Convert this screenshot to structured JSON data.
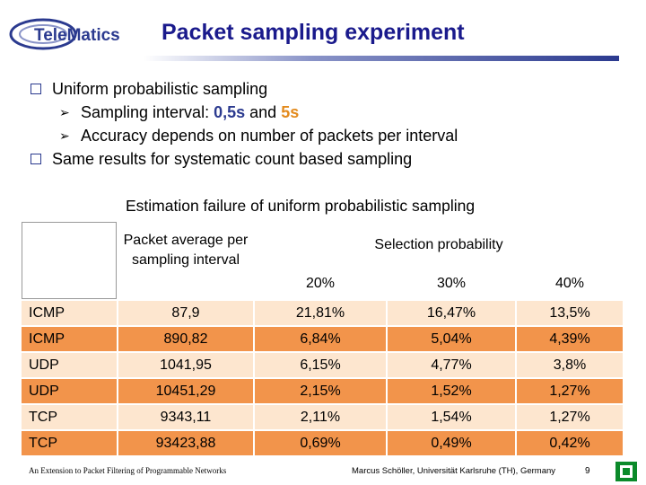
{
  "header": {
    "logo_text": "TeleMatics",
    "title": "Packet sampling experiment"
  },
  "bullets": {
    "item1": "Uniform probabilistic sampling",
    "sub1_prefix": "Sampling interval: ",
    "sub1_value_a": "0,5s",
    "sub1_and": " and ",
    "sub1_value_b": "5s",
    "sub2": "Accuracy depends on number of packets per interval",
    "item2": "Same results for systematic count based sampling"
  },
  "table": {
    "caption": "Estimation failure of uniform probabilistic sampling",
    "header_avg": "Packet average per sampling interval",
    "header_selection": "Selection probability",
    "prob_columns": [
      "20%",
      "30%",
      "40%"
    ],
    "rows": [
      [
        "ICMP",
        "87,9",
        "21,81%",
        "16,47%",
        "13,5%"
      ],
      [
        "ICMP",
        "890,82",
        "6,84%",
        "5,04%",
        "4,39%"
      ],
      [
        "UDP",
        "1041,95",
        "6,15%",
        "4,77%",
        "3,8%"
      ],
      [
        "UDP",
        "10451,29",
        "2,15%",
        "1,52%",
        "1,27%"
      ],
      [
        "TCP",
        "9343,11",
        "2,11%",
        "1,54%",
        "1,27%"
      ],
      [
        "TCP",
        "93423,88",
        "0,69%",
        "0,49%",
        "0,42%"
      ]
    ]
  },
  "footer": {
    "left": "An Extension to Packet Filtering of Programmable Networks",
    "right": "Marcus Schöller, Universität Karlsruhe (TH), Germany",
    "page": "9"
  },
  "colors": {
    "title": "#1a1a8c",
    "accent_blue": "#2b3a8f",
    "accent_orange": "#e38a1c",
    "row_light": "#fde6cf",
    "row_dark": "#f2944b"
  },
  "icons": {
    "bullet": "checkbox-square-icon",
    "sub_bullet": "arrow-right-icon",
    "corner": "nav-square-icon"
  }
}
